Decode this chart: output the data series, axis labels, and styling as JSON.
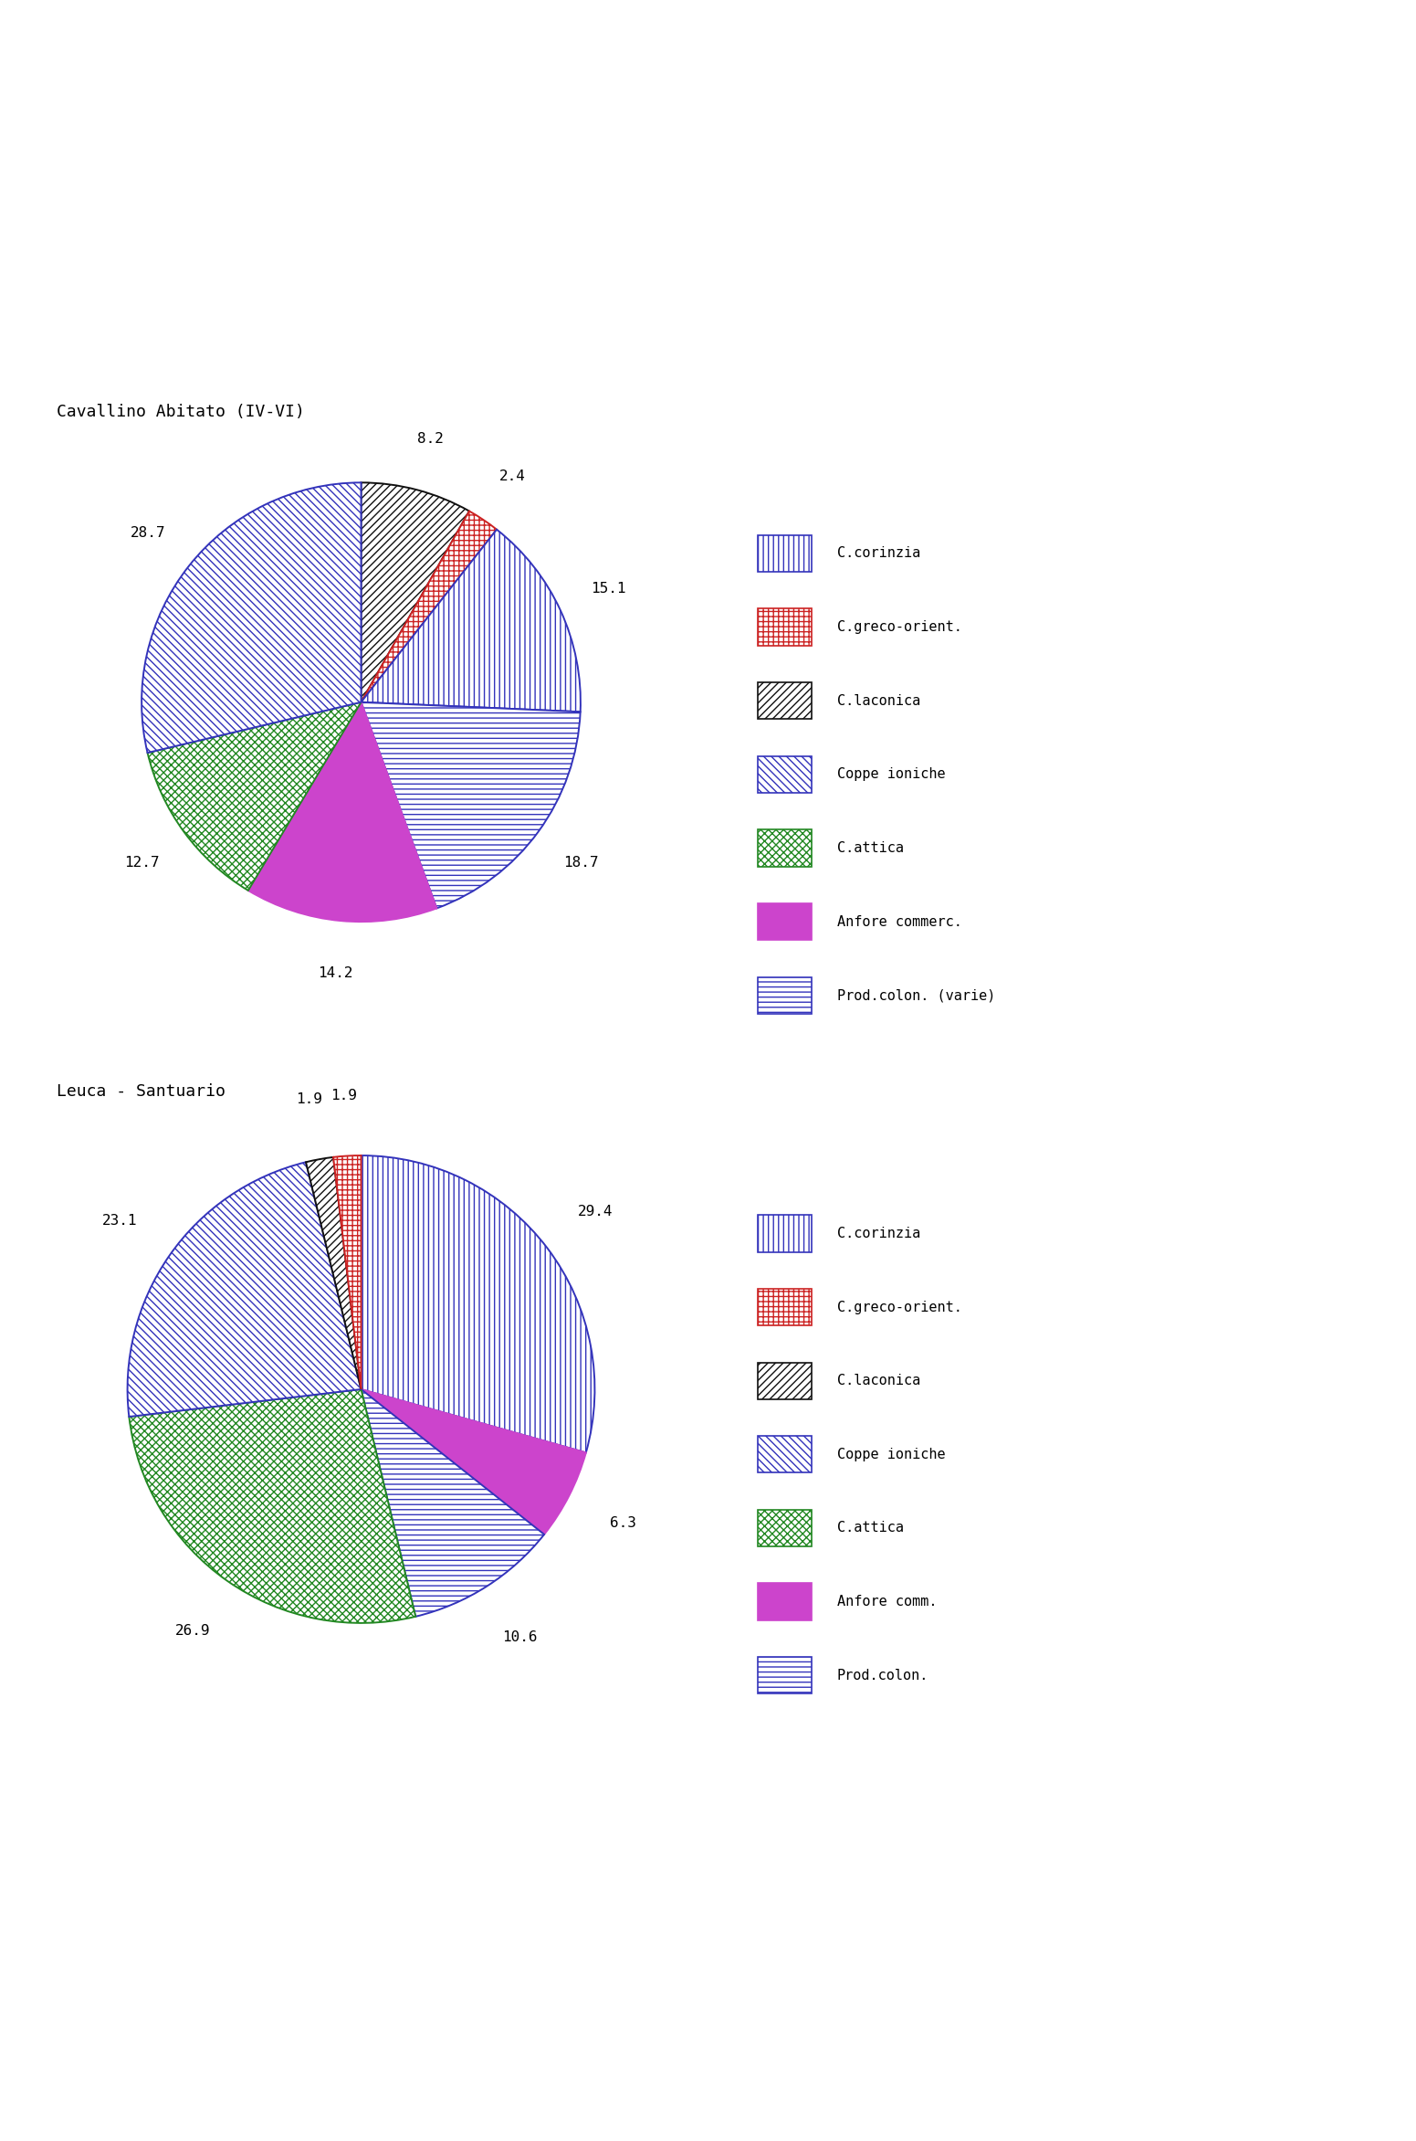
{
  "chart1": {
    "title": "Cavallino Abitato (IV-VI)",
    "values": [
      8.2,
      2.4,
      15.1,
      18.7,
      14.2,
      12.7,
      28.7
    ],
    "labels": [
      "8.2",
      "2.4",
      "15.1",
      "18.7",
      "14.2",
      "12.7",
      "28.7"
    ],
    "slice_order": [
      2,
      1,
      0,
      6,
      5,
      4,
      3
    ]
  },
  "chart2": {
    "title": "Leuca - Santuario",
    "values": [
      29.4,
      6.3,
      10.6,
      26.9,
      23.1,
      1.9,
      1.9
    ],
    "labels": [
      "29.4",
      "6.3",
      "10.6",
      "26.9",
      "23.1",
      "1.9",
      "1.9"
    ],
    "slice_order": [
      0,
      5,
      6,
      4,
      3,
      2,
      1
    ]
  },
  "legend1_labels": [
    "C.corinzia",
    "C.greco-orient.",
    "C.laconica",
    "Coppe ioniche",
    "C.attica",
    "Anfore commerc.",
    "Prod.colon. (varie)"
  ],
  "legend2_labels": [
    "C.corinzia",
    "C.greco-orient.",
    "C.laconica",
    "Coppe ioniche",
    "C.attica",
    "Anfore comm.",
    "Prod.colon."
  ],
  "slice_styles": [
    {
      "hatch": "|||",
      "facecolor": "#ffffff",
      "edgecolor": "#3333bb",
      "lw": 1.0
    },
    {
      "hatch": "+++",
      "facecolor": "#ffffff",
      "edgecolor": "#cc2222",
      "lw": 1.0
    },
    {
      "hatch": "////",
      "facecolor": "#ffffff",
      "edgecolor": "#111111",
      "lw": 1.0
    },
    {
      "hatch": "\\\\\\\\",
      "facecolor": "#ffffff",
      "edgecolor": "#3333bb",
      "lw": 1.0
    },
    {
      "hatch": "xxxx",
      "facecolor": "#ffffff",
      "edgecolor": "#228822",
      "lw": 1.0
    },
    {
      "hatch": "",
      "facecolor": "#cc44cc",
      "edgecolor": "#cc44cc",
      "lw": 1.0
    },
    {
      "hatch": "---",
      "facecolor": "#ffffff",
      "edgecolor": "#3333bb",
      "lw": 1.0
    }
  ],
  "bg_color": "#ffffff",
  "font_family": "monospace"
}
